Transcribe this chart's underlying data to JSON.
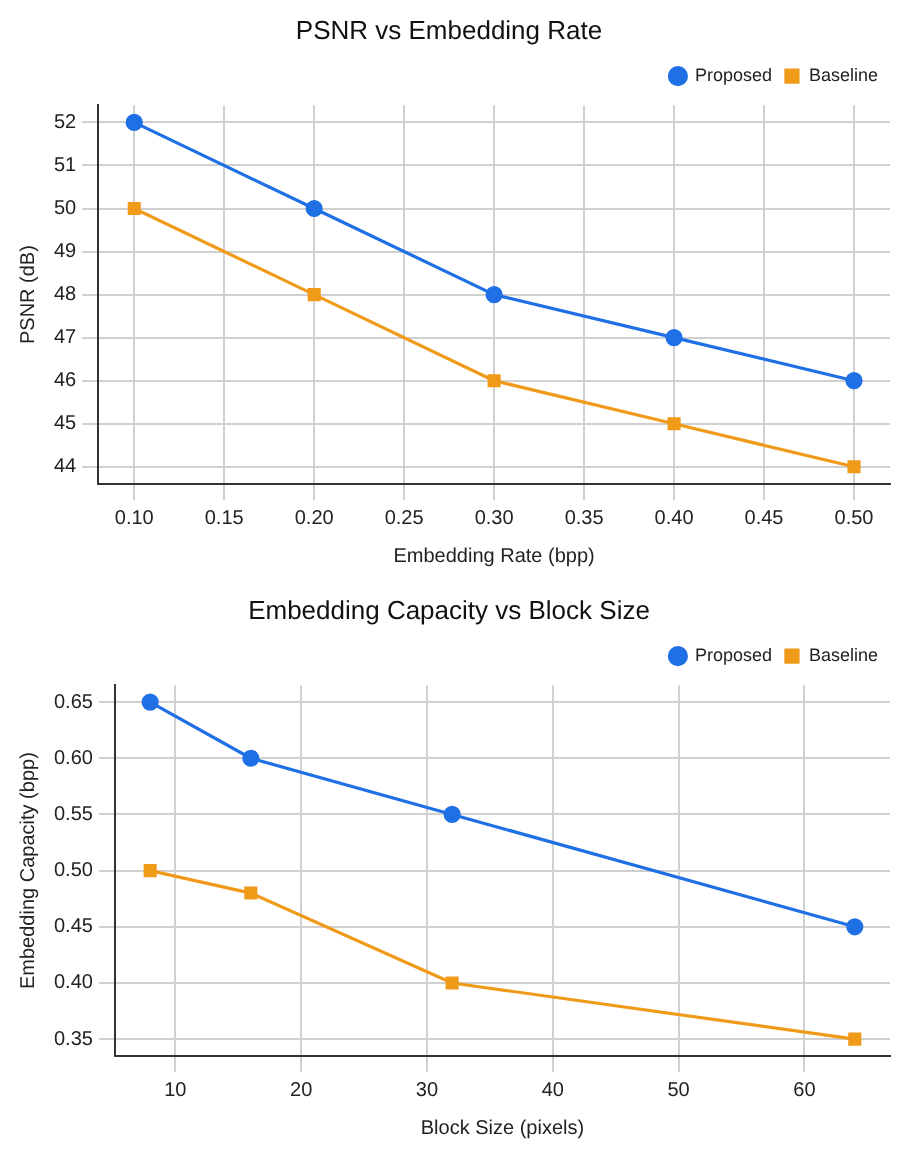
{
  "chart_data": [
    {
      "type": "line",
      "title": "PSNR vs Embedding Rate",
      "xlabel": "Embedding Rate (bpp)",
      "ylabel": "PSNR (dB)",
      "x": [
        0.1,
        0.2,
        0.3,
        0.4,
        0.5
      ],
      "series": [
        {
          "name": "Proposed",
          "color": "#1f6fe5",
          "values": [
            52,
            50,
            48,
            47,
            46
          ],
          "marker": "circle"
        },
        {
          "name": "Baseline",
          "color": "#f09a1a",
          "values": [
            50,
            48,
            46,
            45,
            44
          ],
          "marker": "square"
        }
      ],
      "xlim": [
        0.08,
        0.52
      ],
      "xticks": [
        {
          "value": 0.1,
          "label": "0.10"
        },
        {
          "value": 0.15,
          "label": "0.15"
        },
        {
          "value": 0.2,
          "label": "0.20"
        },
        {
          "value": 0.25,
          "label": "0.25"
        },
        {
          "value": 0.3,
          "label": "0.30"
        },
        {
          "value": 0.35,
          "label": "0.35"
        },
        {
          "value": 0.4,
          "label": "0.40"
        },
        {
          "value": 0.45,
          "label": "0.45"
        },
        {
          "value": 0.5,
          "label": "0.50"
        }
      ],
      "ylim": [
        43.6,
        52.4
      ],
      "yticks": [
        44,
        45,
        46,
        47,
        48,
        49,
        50,
        51,
        52
      ],
      "grid": true,
      "legend": "top right",
      "line_style": "solid"
    },
    {
      "type": "line",
      "title": "Embedding Capacity vs Block Size",
      "xlabel": "Block Size (pixels)",
      "ylabel": "Embedding Capacity (bpp)",
      "x": [
        8,
        16,
        32,
        64
      ],
      "series": [
        {
          "name": "Proposed",
          "color": "#1f6fe5",
          "values": [
            0.65,
            0.6,
            0.55,
            0.45
          ],
          "marker": "circle"
        },
        {
          "name": "Baseline",
          "color": "#f09a1a",
          "values": [
            0.5,
            0.48,
            0.4,
            0.35
          ],
          "marker": "square"
        }
      ],
      "xlim": [
        5.2,
        66.8
      ],
      "xticks": [
        10,
        20,
        30,
        40,
        50,
        60
      ],
      "ylim": [
        0.335,
        0.665
      ],
      "yticks": [
        {
          "value": 0.35,
          "label": "0.35"
        },
        {
          "value": 0.4,
          "label": "0.40"
        },
        {
          "value": 0.45,
          "label": "0.45"
        },
        {
          "value": 0.5,
          "label": "0.50"
        },
        {
          "value": 0.55,
          "label": "0.55"
        },
        {
          "value": 0.6,
          "label": "0.60"
        },
        {
          "value": 0.65,
          "label": "0.65"
        }
      ],
      "grid": true,
      "legend": "top right",
      "line_style": "solid"
    }
  ]
}
